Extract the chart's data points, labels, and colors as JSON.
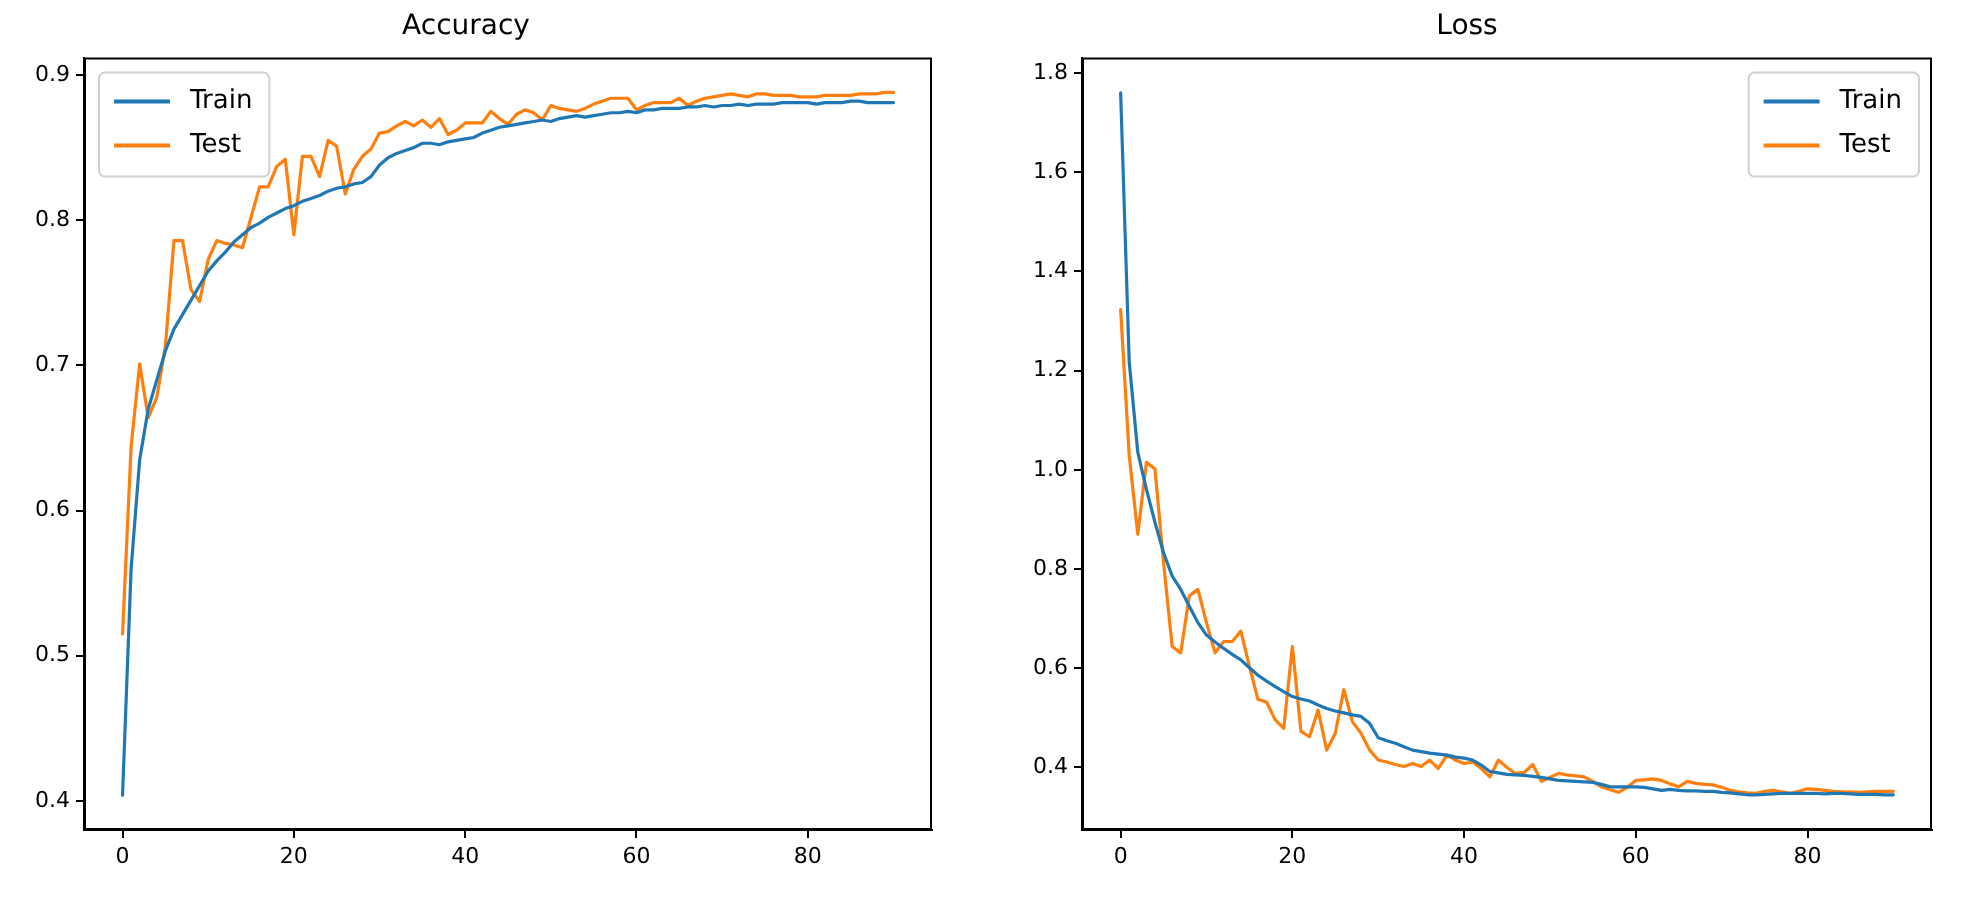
{
  "chart_data": [
    {
      "type": "line",
      "title": "Accuracy",
      "grid": false,
      "legend": "top left",
      "x": [
        0,
        1,
        2,
        3,
        4,
        5,
        6,
        7,
        8,
        9,
        10,
        11,
        12,
        13,
        14,
        15,
        16,
        17,
        18,
        19,
        20,
        21,
        22,
        23,
        24,
        25,
        26,
        27,
        28,
        29,
        30,
        31,
        32,
        33,
        34,
        35,
        36,
        37,
        38,
        39,
        40,
        41,
        42,
        43,
        44,
        45,
        46,
        47,
        48,
        49,
        50,
        51,
        52,
        53,
        54,
        55,
        56,
        57,
        58,
        59,
        60,
        61,
        62,
        63,
        64,
        65,
        66,
        67,
        68,
        69,
        70,
        71,
        72,
        73,
        74,
        75,
        76,
        77,
        78,
        79,
        80,
        81,
        82,
        83,
        84,
        85,
        86,
        87,
        88,
        89,
        90
      ],
      "xlim": [
        -4.5,
        94.5
      ],
      "xticks": [
        0,
        20,
        40,
        60,
        80
      ],
      "ylim": [
        0.38,
        0.912
      ],
      "yticks": [
        0.4,
        0.5,
        0.6,
        0.7,
        0.8,
        0.9
      ],
      "series": [
        {
          "name": "Train",
          "color": "#1f77b4",
          "values": [
            0.404,
            0.56,
            0.635,
            0.67,
            0.69,
            0.71,
            0.725,
            0.735,
            0.745,
            0.755,
            0.765,
            0.772,
            0.778,
            0.785,
            0.79,
            0.795,
            0.798,
            0.802,
            0.805,
            0.808,
            0.81,
            0.813,
            0.815,
            0.817,
            0.82,
            0.822,
            0.823,
            0.825,
            0.826,
            0.83,
            0.838,
            0.843,
            0.846,
            0.848,
            0.85,
            0.853,
            0.853,
            0.852,
            0.854,
            0.855,
            0.856,
            0.857,
            0.86,
            0.862,
            0.864,
            0.865,
            0.866,
            0.867,
            0.868,
            0.869,
            0.868,
            0.87,
            0.871,
            0.872,
            0.871,
            0.872,
            0.873,
            0.874,
            0.874,
            0.875,
            0.874,
            0.876,
            0.876,
            0.877,
            0.877,
            0.877,
            0.878,
            0.878,
            0.879,
            0.878,
            0.879,
            0.879,
            0.88,
            0.879,
            0.88,
            0.88,
            0.88,
            0.881,
            0.881,
            0.881,
            0.881,
            0.88,
            0.881,
            0.881,
            0.881,
            0.882,
            0.882,
            0.881,
            0.881,
            0.881,
            0.881
          ]
        },
        {
          "name": "Test",
          "color": "#ff7f0e",
          "values": [
            0.515,
            0.644,
            0.701,
            0.664,
            0.678,
            0.713,
            0.786,
            0.786,
            0.752,
            0.744,
            0.773,
            0.786,
            0.784,
            0.783,
            0.781,
            0.802,
            0.823,
            0.823,
            0.837,
            0.842,
            0.79,
            0.844,
            0.844,
            0.83,
            0.855,
            0.851,
            0.818,
            0.835,
            0.844,
            0.849,
            0.86,
            0.861,
            0.865,
            0.868,
            0.865,
            0.869,
            0.864,
            0.87,
            0.859,
            0.862,
            0.867,
            0.867,
            0.867,
            0.875,
            0.87,
            0.866,
            0.873,
            0.876,
            0.874,
            0.869,
            0.879,
            0.877,
            0.876,
            0.875,
            0.877,
            0.88,
            0.882,
            0.884,
            0.884,
            0.884,
            0.876,
            0.879,
            0.881,
            0.881,
            0.881,
            0.884,
            0.879,
            0.882,
            0.884,
            0.885,
            0.886,
            0.887,
            0.886,
            0.885,
            0.887,
            0.887,
            0.886,
            0.886,
            0.886,
            0.885,
            0.885,
            0.885,
            0.886,
            0.886,
            0.886,
            0.886,
            0.887,
            0.887,
            0.887,
            0.888,
            0.888
          ]
        }
      ]
    },
    {
      "type": "line",
      "title": "Loss",
      "grid": false,
      "legend": "top right",
      "x": [
        0,
        1,
        2,
        3,
        4,
        5,
        6,
        7,
        8,
        9,
        10,
        11,
        12,
        13,
        14,
        15,
        16,
        17,
        18,
        19,
        20,
        21,
        22,
        23,
        24,
        25,
        26,
        27,
        28,
        29,
        30,
        31,
        32,
        33,
        34,
        35,
        36,
        37,
        38,
        39,
        40,
        41,
        42,
        43,
        44,
        45,
        46,
        47,
        48,
        49,
        50,
        51,
        52,
        53,
        54,
        55,
        56,
        57,
        58,
        59,
        60,
        61,
        62,
        63,
        64,
        65,
        66,
        67,
        68,
        69,
        70,
        71,
        72,
        73,
        74,
        75,
        76,
        77,
        78,
        79,
        80,
        81,
        82,
        83,
        84,
        85,
        86,
        87,
        88,
        89,
        90
      ],
      "xlim": [
        -4.5,
        94.5
      ],
      "xticks": [
        0,
        20,
        40,
        60,
        80
      ],
      "ylim": [
        0.274,
        1.831
      ],
      "yticks": [
        0.4,
        0.6,
        0.8,
        {
          "value": 1,
          "label": "1.0"
        },
        1.2,
        1.4,
        1.6,
        1.8
      ],
      "series": [
        {
          "name": "Train",
          "color": "#1f77b4",
          "values": [
            1.76,
            1.217,
            1.035,
            0.961,
            0.894,
            0.833,
            0.786,
            0.759,
            0.725,
            0.692,
            0.667,
            0.653,
            0.64,
            0.628,
            0.617,
            0.601,
            0.586,
            0.574,
            0.563,
            0.553,
            0.543,
            0.538,
            0.534,
            0.526,
            0.519,
            0.514,
            0.51,
            0.506,
            0.503,
            0.489,
            0.46,
            0.454,
            0.449,
            0.442,
            0.435,
            0.432,
            0.429,
            0.427,
            0.425,
            0.421,
            0.419,
            0.415,
            0.405,
            0.392,
            0.389,
            0.386,
            0.385,
            0.384,
            0.382,
            0.38,
            0.377,
            0.374,
            0.373,
            0.372,
            0.371,
            0.37,
            0.366,
            0.361,
            0.361,
            0.361,
            0.361,
            0.36,
            0.357,
            0.354,
            0.356,
            0.354,
            0.353,
            0.353,
            0.352,
            0.352,
            0.35,
            0.349,
            0.347,
            0.345,
            0.345,
            0.346,
            0.347,
            0.348,
            0.348,
            0.348,
            0.348,
            0.348,
            0.347,
            0.348,
            0.348,
            0.347,
            0.346,
            0.346,
            0.346,
            0.345,
            0.345
          ]
        },
        {
          "name": "Test",
          "color": "#ff7f0e",
          "values": [
            1.323,
            1.029,
            0.87,
            1.015,
            1.002,
            0.813,
            0.644,
            0.631,
            0.746,
            0.759,
            0.692,
            0.631,
            0.654,
            0.654,
            0.675,
            0.604,
            0.537,
            0.532,
            0.496,
            0.479,
            0.644,
            0.473,
            0.462,
            0.516,
            0.435,
            0.469,
            0.557,
            0.492,
            0.469,
            0.435,
            0.415,
            0.411,
            0.406,
            0.402,
            0.408,
            0.402,
            0.415,
            0.398,
            0.425,
            0.415,
            0.408,
            0.411,
            0.398,
            0.381,
            0.415,
            0.4,
            0.388,
            0.39,
            0.406,
            0.372,
            0.38,
            0.388,
            0.385,
            0.383,
            0.381,
            0.372,
            0.361,
            0.355,
            0.35,
            0.36,
            0.374,
            0.375,
            0.377,
            0.374,
            0.367,
            0.361,
            0.372,
            0.368,
            0.366,
            0.365,
            0.36,
            0.354,
            0.351,
            0.349,
            0.348,
            0.352,
            0.354,
            0.351,
            0.348,
            0.352,
            0.357,
            0.356,
            0.354,
            0.352,
            0.351,
            0.351,
            0.35,
            0.351,
            0.352,
            0.352,
            0.352
          ]
        }
      ]
    }
  ]
}
